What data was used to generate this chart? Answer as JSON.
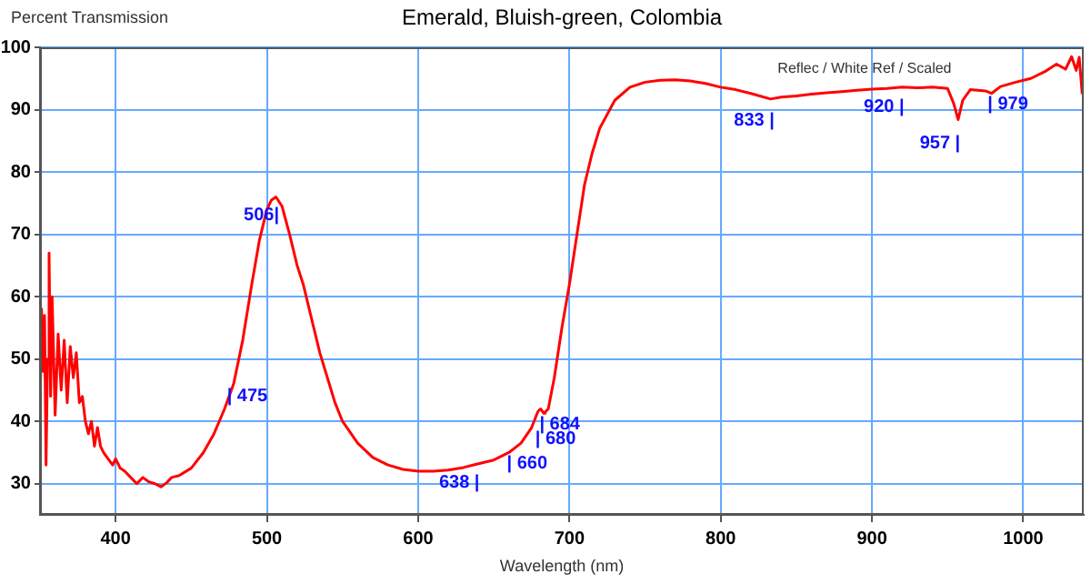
{
  "chart_data": {
    "type": "line",
    "title": "Emerald, Bluish-green, Colombia",
    "ylabel": "Percent Transmission",
    "xlabel": "Wavelength (nm)",
    "xlim": [
      350,
      1040
    ],
    "xticks": [
      400,
      500,
      600,
      700,
      800,
      900,
      1000
    ],
    "ylim": [
      25,
      100
    ],
    "yticks": [
      30,
      40,
      50,
      60,
      70,
      80,
      90,
      100
    ],
    "grid": true,
    "legend": false,
    "marker": "none",
    "line_style": "solid",
    "x": [
      350,
      351,
      352,
      353,
      354,
      355,
      356,
      357,
      358,
      360,
      362,
      364,
      366,
      368,
      370,
      372,
      374,
      376,
      378,
      380,
      382,
      384,
      386,
      388,
      390,
      392,
      395,
      398,
      400,
      403,
      406,
      410,
      414,
      418,
      422,
      426,
      430,
      434,
      437,
      442,
      450,
      458,
      465,
      472,
      475,
      478,
      484,
      490,
      495,
      500,
      503,
      506,
      510,
      515,
      520,
      524,
      530,
      535,
      540,
      545,
      550,
      560,
      570,
      580,
      590,
      600,
      610,
      620,
      630,
      638,
      640,
      650,
      660,
      668,
      675,
      679,
      680,
      681,
      683,
      684,
      686,
      690,
      695,
      700,
      705,
      710,
      715,
      720,
      730,
      740,
      750,
      760,
      770,
      780,
      790,
      800,
      810,
      820,
      833,
      840,
      850,
      860,
      870,
      880,
      890,
      900,
      910,
      920,
      930,
      940,
      950,
      954,
      957,
      960,
      965,
      975,
      979,
      985,
      995,
      1005,
      1015,
      1022,
      1028,
      1032,
      1035,
      1037,
      1039
    ],
    "series": [
      {
        "color": "#ff0000",
        "values": [
          55,
          58,
          48,
          57,
          33,
          50,
          67,
          44,
          60,
          41,
          54,
          45,
          53,
          43,
          52,
          47,
          51,
          43,
          44,
          40,
          38,
          40,
          36,
          39,
          36,
          35,
          34,
          33,
          34,
          32.5,
          32,
          31,
          30,
          31,
          30.3,
          30,
          29.5,
          30.2,
          31,
          31.3,
          32.5,
          35,
          38,
          42,
          44,
          46,
          53,
          62,
          69,
          74,
          75.5,
          76,
          74.5,
          70,
          65,
          62,
          56,
          51,
          47,
          43,
          40,
          36.5,
          34.2,
          33,
          32.3,
          32,
          32,
          32.2,
          32.6,
          33.1,
          33.2,
          33.8,
          35,
          36.5,
          39,
          41.5,
          41.8,
          42,
          41.3,
          41.5,
          42,
          47,
          55,
          62,
          70,
          78,
          83,
          87,
          91.5,
          93.6,
          94.4,
          94.7,
          94.8,
          94.6,
          94.2,
          93.6,
          93.2,
          92.6,
          91.7,
          92,
          92.2,
          92.5,
          92.7,
          92.9,
          93.1,
          93.3,
          93.4,
          93.6,
          93.5,
          93.6,
          93.4,
          91,
          88.4,
          91.5,
          93.2,
          93,
          92.6,
          93.7,
          94.4,
          95,
          96.2,
          97.3,
          96.5,
          98.5,
          96.3,
          98.4,
          92.5
        ]
      }
    ],
    "annotations": [
      {
        "text": "506|",
        "x": 506,
        "y": 76
      },
      {
        "text": "| 475",
        "x": 475,
        "y": 44
      },
      {
        "text": "638 |",
        "x": 638,
        "y": 33.1
      },
      {
        "text": "| 660",
        "x": 660,
        "y": 35
      },
      {
        "text": "| 684",
        "x": 684,
        "y": 41.5
      },
      {
        "text": "| 680",
        "x": 680,
        "y": 41.8
      },
      {
        "text": "833 |",
        "x": 833,
        "y": 91.7
      },
      {
        "text": "920 |",
        "x": 920,
        "y": 93.6
      },
      {
        "text": "957 |",
        "x": 957,
        "y": 88.4
      },
      {
        "text": "| 979",
        "x": 979,
        "y": 92.6
      },
      "Reflec / White Ref / Scaled"
    ]
  }
}
